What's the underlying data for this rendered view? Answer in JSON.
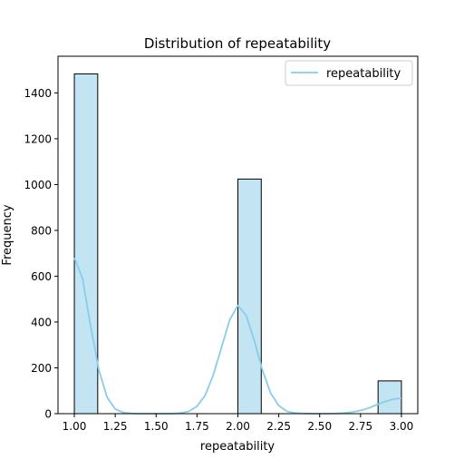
{
  "chart_data": {
    "type": "bar",
    "title": "Distribution of repeatability",
    "xlabel": "repeatability",
    "ylabel": "Frequency",
    "xlim": [
      0.9,
      3.1
    ],
    "ylim": [
      0,
      1560
    ],
    "xticks": [
      1.0,
      1.25,
      1.5,
      1.75,
      2.0,
      2.25,
      2.5,
      2.75,
      3.0
    ],
    "xtick_labels": [
      "1.00",
      "1.25",
      "1.50",
      "1.75",
      "2.00",
      "2.25",
      "2.50",
      "2.75",
      "3.00"
    ],
    "yticks": [
      0,
      200,
      400,
      600,
      800,
      1000,
      1200,
      1400
    ],
    "ytick_labels": [
      "0",
      "200",
      "400",
      "600",
      "800",
      "1000",
      "1200",
      "1400"
    ],
    "bins": [
      {
        "x0": 1.0,
        "x1": 1.142857,
        "count": 1483
      },
      {
        "x0": 1.142857,
        "x1": 1.285714,
        "count": 0
      },
      {
        "x0": 1.285714,
        "x1": 1.428571,
        "count": 0
      },
      {
        "x0": 1.428571,
        "x1": 1.571429,
        "count": 0
      },
      {
        "x0": 1.571429,
        "x1": 1.714286,
        "count": 0
      },
      {
        "x0": 1.714286,
        "x1": 1.857143,
        "count": 0
      },
      {
        "x0": 1.857143,
        "x1": 2.0,
        "count": 0
      },
      {
        "x0": 2.0,
        "x1": 2.142857,
        "count": 1024
      },
      {
        "x0": 2.142857,
        "x1": 2.285714,
        "count": 0
      },
      {
        "x0": 2.285714,
        "x1": 2.428571,
        "count": 0
      },
      {
        "x0": 2.428571,
        "x1": 2.571429,
        "count": 0
      },
      {
        "x0": 2.571429,
        "x1": 2.714286,
        "count": 0
      },
      {
        "x0": 2.714286,
        "x1": 2.857143,
        "count": 0
      },
      {
        "x0": 2.857143,
        "x1": 3.0,
        "count": 143
      }
    ],
    "kde": {
      "name": "repeatability",
      "x": [
        1.0,
        1.05,
        1.1,
        1.15,
        1.2,
        1.25,
        1.3,
        1.35,
        1.4,
        1.45,
        1.5,
        1.55,
        1.6,
        1.65,
        1.7,
        1.75,
        1.8,
        1.85,
        1.9,
        1.95,
        2.0,
        2.05,
        2.1,
        2.15,
        2.2,
        2.25,
        2.3,
        2.35,
        2.4,
        2.45,
        2.5,
        2.55,
        2.6,
        2.65,
        2.7,
        2.75,
        2.8,
        2.85,
        2.9,
        2.95,
        3.0
      ],
      "y": [
        680,
        590,
        380,
        190,
        72,
        20,
        5,
        1,
        0,
        0,
        0,
        0,
        0,
        3,
        10,
        32,
        80,
        170,
        290,
        410,
        472,
        430,
        320,
        190,
        90,
        35,
        10,
        3,
        1,
        0,
        0,
        0,
        1,
        3,
        7,
        14,
        25,
        39,
        53,
        63,
        68
      ]
    },
    "legend": {
      "entries": [
        "repeatability"
      ],
      "placement": "top-right"
    },
    "colors": {
      "bar_fill": "#c3e4f2",
      "bar_edge": "#000000",
      "kde_line": "#87ceeb"
    },
    "grid": false
  }
}
